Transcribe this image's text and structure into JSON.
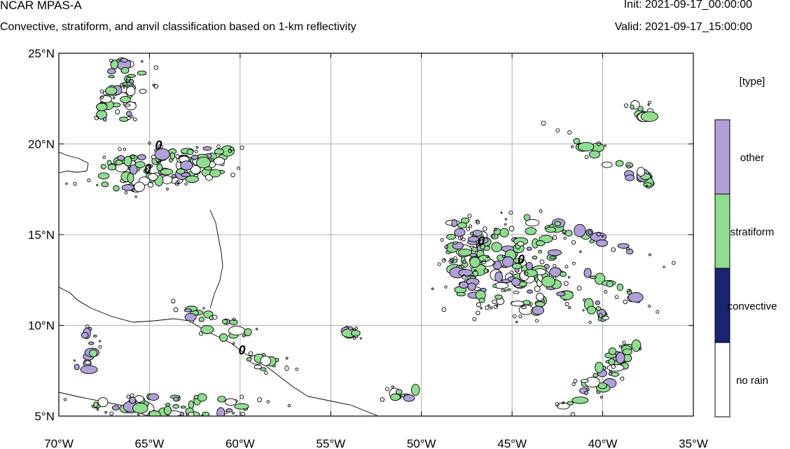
{
  "header": {
    "title": "NCAR MPAS-A",
    "subtitle": "Convective, stratiform, and anvil classification based on 1-km reflectivity",
    "init": "Init: 2021-09-17_00:00:00",
    "valid": "Valid: 2021-09-17_15:00:00"
  },
  "map": {
    "lon_range": [
      -70,
      -35
    ],
    "lat_range": [
      5,
      25
    ],
    "lon_ticks": [
      {
        "value": -70,
        "label": "70°W"
      },
      {
        "value": -65,
        "label": "65°W"
      },
      {
        "value": -60,
        "label": "60°W"
      },
      {
        "value": -55,
        "label": "55°W"
      },
      {
        "value": -50,
        "label": "50°W"
      },
      {
        "value": -45,
        "label": "45°W"
      },
      {
        "value": -40,
        "label": "40°W"
      },
      {
        "value": -35,
        "label": "35°W"
      }
    ],
    "lat_ticks": [
      {
        "value": 25,
        "label": "25°N"
      },
      {
        "value": 20,
        "label": "20°N"
      },
      {
        "value": 15,
        "label": "15°N"
      },
      {
        "value": 10,
        "label": "10°N"
      },
      {
        "value": 5,
        "label": "5°N"
      }
    ],
    "grid": true,
    "contour_labels": [
      {
        "lon": -64.5,
        "lat": 19.7,
        "text": "0"
      },
      {
        "lon": -65.1,
        "lat": 18.4,
        "text": "0"
      },
      {
        "lon": -46.7,
        "lat": 14.4,
        "text": "0"
      },
      {
        "lon": -44.5,
        "lat": 13.4,
        "text": "0"
      },
      {
        "lon": -59.9,
        "lat": 8.4,
        "text": "0"
      }
    ]
  },
  "legend": {
    "title": "[type]",
    "items": [
      {
        "label": "other",
        "color": "#b0a0d8"
      },
      {
        "label": "stratiform",
        "color": "#90dc90"
      },
      {
        "label": "convective",
        "color": "#1a2470"
      },
      {
        "label": "no rain",
        "color": "#ffffff"
      }
    ]
  },
  "colors": {
    "other": "#b0a0d8",
    "stratiform": "#90dc90",
    "contour": "#000000",
    "grid": "#999999"
  },
  "rain_regions": [
    {
      "lon": -65.0,
      "lat": 18.6,
      "rlon": 3.2,
      "rlat": 1.0,
      "rot": -8
    },
    {
      "lon": -62.2,
      "lat": 18.9,
      "rlon": 1.9,
      "rlat": 0.9,
      "rot": -10
    },
    {
      "lon": -66.3,
      "lat": 23.6,
      "rlon": 1.3,
      "rlat": 1.1,
      "rot": 0
    },
    {
      "lon": -66.9,
      "lat": 21.9,
      "rlon": 0.9,
      "rlat": 1.1,
      "rot": 0
    },
    {
      "lon": -61.2,
      "lat": 10.0,
      "rlon": 2.1,
      "rlat": 0.55,
      "rot": 22
    },
    {
      "lon": -58.4,
      "lat": 7.9,
      "rlon": 1.4,
      "rlat": 0.4,
      "rot": 15
    },
    {
      "lon": -63.5,
      "lat": 5.6,
      "rlon": 4.5,
      "rlat": 0.55,
      "rot": 0
    },
    {
      "lon": -68.5,
      "lat": 8.5,
      "rlon": 0.5,
      "rlat": 1.4,
      "rot": 10
    },
    {
      "lon": -45.5,
      "lat": 13.3,
      "rlon": 3.0,
      "rlat": 1.9,
      "rot": -20
    },
    {
      "lon": -43.5,
      "lat": 11.9,
      "rlon": 2.0,
      "rlat": 1.1,
      "rot": -15
    },
    {
      "lon": -47.6,
      "lat": 14.6,
      "rlon": 1.0,
      "rlat": 1.5,
      "rot": 0
    },
    {
      "lon": -41.0,
      "lat": 14.9,
      "rlon": 3.8,
      "rlat": 0.3,
      "rot": 18
    },
    {
      "lon": -39.0,
      "lat": 11.9,
      "rlon": 2.2,
      "rlat": 0.3,
      "rot": 28
    },
    {
      "lon": -40.2,
      "lat": 10.9,
      "rlon": 0.7,
      "rlat": 0.6,
      "rot": 0
    },
    {
      "lon": -39.5,
      "lat": 19.1,
      "rlon": 3.0,
      "rlat": 0.4,
      "rot": 30
    },
    {
      "lon": -37.9,
      "lat": 21.8,
      "rlon": 0.8,
      "rlat": 0.4,
      "rot": 10
    },
    {
      "lon": -40.3,
      "lat": 7.0,
      "rlon": 2.4,
      "rlat": 0.6,
      "rot": -40
    },
    {
      "lon": -38.8,
      "lat": 8.4,
      "rlon": 0.9,
      "rlat": 0.6,
      "rot": -30
    },
    {
      "lon": -51.0,
      "lat": 6.2,
      "rlon": 1.3,
      "rlat": 0.3,
      "rot": 0
    },
    {
      "lon": -53.8,
      "lat": 9.6,
      "rlon": 0.5,
      "rlat": 0.25,
      "rot": 20
    }
  ]
}
